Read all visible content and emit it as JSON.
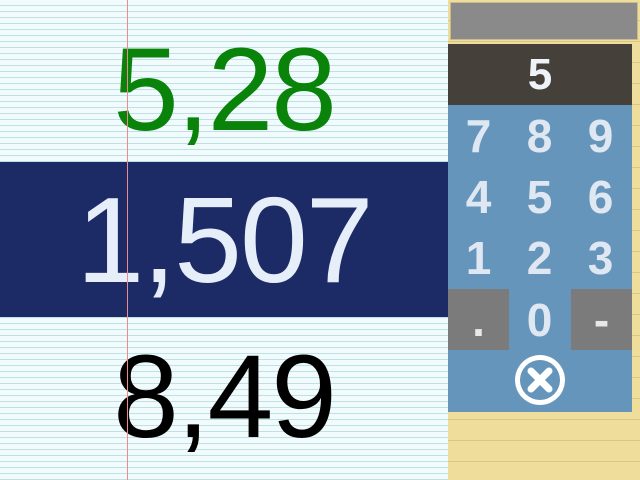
{
  "rows": {
    "top": "5,28",
    "middle": "1,507",
    "bottom": "8,49"
  },
  "keypad": {
    "display": "5",
    "keys": {
      "k7": "7",
      "k8": "8",
      "k9": "9",
      "k4": "4",
      "k5": "5",
      "k6": "6",
      "k1": "1",
      "k2": "2",
      "k3": "3",
      "dot": ".",
      "k0": "0",
      "minus": "-"
    },
    "clear_icon": "close-circle-icon"
  },
  "colors": {
    "top_value": "#098309",
    "selected_row_bg": "#1c2a66",
    "keypad_bg": "#6695bb",
    "display_bg": "#45413a"
  }
}
